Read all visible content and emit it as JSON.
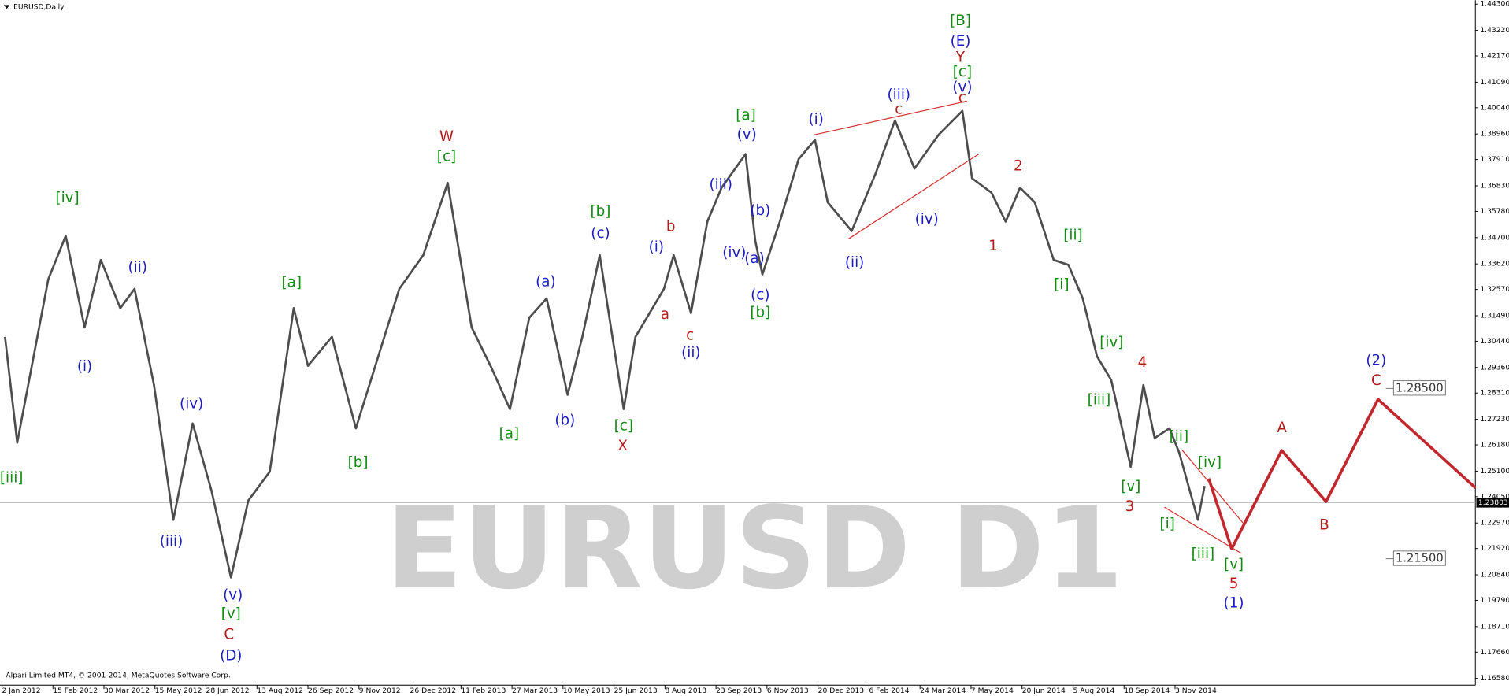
{
  "chart_data": {
    "type": "line",
    "title": "EURUSD,Daily",
    "watermark": "EURUSD D1",
    "footer": "Alpari Limited MT4, © 2001-2014, MetaQuotes Software Corp.",
    "xlim": [
      -0.038,
      28.887
    ],
    "xticks": [
      {
        "value": 0,
        "label": "2 Jan 2012"
      },
      {
        "value": 1,
        "label": "15 Feb 2012"
      },
      {
        "value": 2,
        "label": "30 Mar 2012"
      },
      {
        "value": 3,
        "label": "15 May 2012"
      },
      {
        "value": 4,
        "label": "28 Jun 2012"
      },
      {
        "value": 5,
        "label": "13 Aug 2012"
      },
      {
        "value": 6,
        "label": "26 Sep 2012"
      },
      {
        "value": 7,
        "label": "9 Nov 2012"
      },
      {
        "value": 8,
        "label": "26 Dec 2012"
      },
      {
        "value": 9,
        "label": "11 Feb 2013"
      },
      {
        "value": 10,
        "label": "27 Mar 2013"
      },
      {
        "value": 11,
        "label": "10 May 2013"
      },
      {
        "value": 12,
        "label": "25 Jun 2013"
      },
      {
        "value": 13,
        "label": "8 Aug 2013"
      },
      {
        "value": 14,
        "label": "23 Sep 2013"
      },
      {
        "value": 15,
        "label": "6 Nov 2013"
      },
      {
        "value": 16,
        "label": "20 Dec 2013"
      },
      {
        "value": 17,
        "label": "6 Feb 2014"
      },
      {
        "value": 18,
        "label": "24 Mar 2014"
      },
      {
        "value": 19,
        "label": "7 May 2014"
      },
      {
        "value": 20,
        "label": "20 Jun 2014"
      },
      {
        "value": 21,
        "label": "5 Aug 2014"
      },
      {
        "value": 22,
        "label": "18 Sep 2014"
      },
      {
        "value": 23,
        "label": "3 Nov 2014"
      }
    ],
    "ylim": [
      1.163,
      1.4446
    ],
    "yticks": [
      {
        "value": 1.443,
        "label": "1.44300"
      },
      {
        "value": 1.4322,
        "label": "1.43220"
      },
      {
        "value": 1.4217,
        "label": "1.42170"
      },
      {
        "value": 1.4109,
        "label": "1.41090"
      },
      {
        "value": 1.4004,
        "label": "1.40040"
      },
      {
        "value": 1.3896,
        "label": "1.38960"
      },
      {
        "value": 1.3791,
        "label": "1.37910"
      },
      {
        "value": 1.3683,
        "label": "1.36830"
      },
      {
        "value": 1.3578,
        "label": "1.35780"
      },
      {
        "value": 1.347,
        "label": "1.34700"
      },
      {
        "value": 1.3362,
        "label": "1.33620"
      },
      {
        "value": 1.3257,
        "label": "1.32570"
      },
      {
        "value": 1.3149,
        "label": "1.31490"
      },
      {
        "value": 1.3044,
        "label": "1.30440"
      },
      {
        "value": 1.2936,
        "label": "1.29360"
      },
      {
        "value": 1.2831,
        "label": "1.28310"
      },
      {
        "value": 1.2723,
        "label": "1.27230"
      },
      {
        "value": 1.2618,
        "label": "1.26180"
      },
      {
        "value": 1.251,
        "label": "1.25100"
      },
      {
        "value": 1.2405,
        "label": "1.24050"
      },
      {
        "value": 1.2297,
        "label": "1.22970"
      },
      {
        "value": 1.2192,
        "label": "1.21920"
      },
      {
        "value": 1.2084,
        "label": "1.20840"
      },
      {
        "value": 1.1979,
        "label": "1.19790"
      },
      {
        "value": 1.1871,
        "label": "1.18710"
      },
      {
        "value": 1.1766,
        "label": "1.17660"
      },
      {
        "value": 1.1658,
        "label": "1.16580"
      }
    ],
    "price": {
      "color": "#4d4d4d",
      "x": [
        0.06,
        0.3,
        0.91,
        1.25,
        1.62,
        1.94,
        2.32,
        2.6,
        2.98,
        3.36,
        3.74,
        4.11,
        4.49,
        4.83,
        5.25,
        5.72,
        6.0,
        6.47,
        6.94,
        7.32,
        7.79,
        8.26,
        8.74,
        9.21,
        9.58,
        9.96,
        10.34,
        10.68,
        11.09,
        11.38,
        11.72,
        11.94,
        12.19,
        12.42,
        12.98,
        13.17,
        13.51,
        13.83,
        14.11,
        14.58,
        14.77,
        14.91,
        15.25,
        15.62,
        15.94,
        16.19,
        16.66,
        17.13,
        17.51,
        17.89,
        18.36,
        18.83,
        19.02,
        19.4,
        19.68,
        19.96,
        20.25,
        20.62,
        20.91,
        21.19,
        21.47,
        21.75,
        22.13,
        22.38,
        22.6,
        22.89,
        23.08,
        23.45,
        23.58
      ],
      "values": [
        1.3062,
        1.2627,
        1.3299,
        1.3477,
        1.3101,
        1.3378,
        1.318,
        1.3259,
        1.2864,
        1.231,
        1.2706,
        1.2429,
        1.2073,
        1.2389,
        1.2508,
        1.318,
        1.2943,
        1.3062,
        1.2686,
        1.2943,
        1.3259,
        1.3398,
        1.3695,
        1.3101,
        1.2943,
        1.2765,
        1.3141,
        1.322,
        1.2824,
        1.3062,
        1.3398,
        1.3101,
        1.2765,
        1.3062,
        1.3259,
        1.3398,
        1.316,
        1.3536,
        1.3675,
        1.3813,
        1.3457,
        1.3319,
        1.3536,
        1.3793,
        1.3872,
        1.3615,
        1.3497,
        1.3734,
        1.3952,
        1.3754,
        1.3892,
        1.3991,
        1.3714,
        1.3655,
        1.3536,
        1.3675,
        1.3615,
        1.3378,
        1.3358,
        1.322,
        1.2982,
        1.2884,
        1.2528,
        1.2864,
        1.2646,
        1.2686,
        1.2587,
        1.231,
        1.2449
      ]
    },
    "projection": {
      "color": "#c0282d",
      "x": [
        23.66,
        24.11,
        25.09,
        25.96,
        26.98,
        28.89
      ],
      "values": [
        1.248,
        1.2191,
        1.2595,
        1.2385,
        1.2805,
        1.2441
      ]
    },
    "channels": [
      {
        "color": "#d03030",
        "x": [
          15.91,
          18.92
        ],
        "values": [
          1.3892,
          1.4031
        ]
      },
      {
        "color": "#d03030",
        "x": [
          16.6,
          19.15
        ],
        "values": [
          1.3465,
          1.3813
        ]
      },
      {
        "color": "#d03030",
        "x": [
          23.13,
          24.36
        ],
        "values": [
          1.2599,
          1.229
        ]
      },
      {
        "color": "#d03030",
        "x": [
          22.79,
          24.3
        ],
        "values": [
          1.2362,
          1.2172
        ]
      }
    ],
    "current_price": {
      "value": 1.23803,
      "label": "1.23803"
    },
    "levels": [
      {
        "value": 1.285,
        "label": "1.28500"
      },
      {
        "value": 1.215,
        "label": "1.21500"
      }
    ],
    "wave_labels": [
      {
        "text": "[iii]",
        "color": "#108a10"
      },
      {
        "text": "[iv]",
        "color": "#108a10"
      },
      {
        "text": "(i)",
        "color": "#1c1cc0"
      },
      {
        "text": "(ii)",
        "color": "#1c1cc0"
      },
      {
        "text": "(iii)",
        "color": "#1c1cc0"
      },
      {
        "text": "(iv)",
        "color": "#1c1cc0"
      },
      {
        "text": "(v)",
        "color": "#1c1cc0"
      },
      {
        "text": "[v]",
        "color": "#108a10"
      },
      {
        "text": "C",
        "color": "#b41c1c"
      },
      {
        "text": "(D)",
        "color": "#1c1cc0"
      },
      {
        "text": "[a]",
        "color": "#108a10"
      },
      {
        "text": "[b]",
        "color": "#108a10"
      },
      {
        "text": "W",
        "color": "#b41c1c"
      },
      {
        "text": "[c]",
        "color": "#108a10"
      },
      {
        "text": "[a]",
        "color": "#108a10"
      },
      {
        "text": "(a)",
        "color": "#1c1cc0"
      },
      {
        "text": "(b)",
        "color": "#1c1cc0"
      },
      {
        "text": "[b]",
        "color": "#108a10"
      },
      {
        "text": "(c)",
        "color": "#1c1cc0"
      },
      {
        "text": "[c]",
        "color": "#108a10"
      },
      {
        "text": "X",
        "color": "#b41c1c"
      },
      {
        "text": "(i)",
        "color": "#1c1cc0"
      },
      {
        "text": "b",
        "color": "#b41c1c"
      },
      {
        "text": "a",
        "color": "#b41c1c"
      },
      {
        "text": "c",
        "color": "#b41c1c"
      },
      {
        "text": "(ii)",
        "color": "#1c1cc0"
      },
      {
        "text": "(iii)",
        "color": "#1c1cc0"
      },
      {
        "text": "[a]",
        "color": "#108a10"
      },
      {
        "text": "(v)",
        "color": "#1c1cc0"
      },
      {
        "text": "(iv)",
        "color": "#1c1cc0"
      },
      {
        "text": "(b)",
        "color": "#1c1cc0"
      },
      {
        "text": "(a)",
        "color": "#1c1cc0"
      },
      {
        "text": "(c)",
        "color": "#1c1cc0"
      },
      {
        "text": "[b]",
        "color": "#108a10"
      },
      {
        "text": "(i)",
        "color": "#1c1cc0"
      },
      {
        "text": "(ii)",
        "color": "#1c1cc0"
      },
      {
        "text": "(iii)",
        "color": "#1c1cc0"
      },
      {
        "text": "c",
        "color": "#b41c1c"
      },
      {
        "text": "(iv)",
        "color": "#1c1cc0"
      },
      {
        "text": "[B]",
        "color": "#108a10"
      },
      {
        "text": "(E)",
        "color": "#1c1cc0"
      },
      {
        "text": "Y",
        "color": "#b41c1c"
      },
      {
        "text": "[c]",
        "color": "#108a10"
      },
      {
        "text": "(v)",
        "color": "#1c1cc0"
      },
      {
        "text": "c",
        "color": "#b41c1c"
      },
      {
        "text": "1",
        "color": "#b41c1c"
      },
      {
        "text": "2",
        "color": "#b41c1c"
      },
      {
        "text": "[ii]",
        "color": "#108a10"
      },
      {
        "text": "[i]",
        "color": "#108a10"
      },
      {
        "text": "[iv]",
        "color": "#108a10"
      },
      {
        "text": "[iii]",
        "color": "#108a10"
      },
      {
        "text": "4",
        "color": "#b41c1c"
      },
      {
        "text": "[v]",
        "color": "#108a10"
      },
      {
        "text": "3",
        "color": "#b41c1c"
      },
      {
        "text": "[ii]",
        "color": "#108a10"
      },
      {
        "text": "[iv]",
        "color": "#108a10"
      },
      {
        "text": "[i]",
        "color": "#108a10"
      },
      {
        "text": "[iii]",
        "color": "#108a10"
      },
      {
        "text": "[v]",
        "color": "#108a10"
      },
      {
        "text": "5",
        "color": "#b41c1c"
      },
      {
        "text": "(1)",
        "color": "#1c1cc0"
      },
      {
        "text": "A",
        "color": "#b41c1c"
      },
      {
        "text": "B",
        "color": "#b41c1c"
      },
      {
        "text": "(2)",
        "color": "#1c1cc0"
      },
      {
        "text": "C",
        "color": "#b41c1c"
      }
    ]
  }
}
